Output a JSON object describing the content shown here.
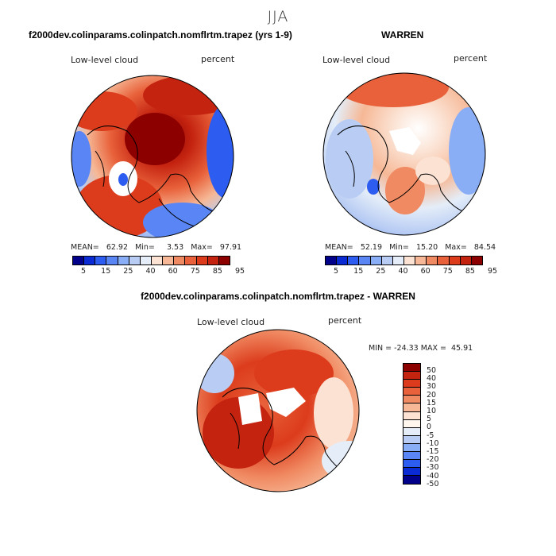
{
  "season": "JJA",
  "panel_left": {
    "title": "f2000dev.colinparams.colinpatch.nomflrtm.trapez (yrs 1-9)",
    "variable": "Low-level cloud",
    "units": "percent",
    "stats": "MEAN=   62.92   Min=     3.53   Max=   97.91"
  },
  "panel_right": {
    "title": "WARREN",
    "variable": "Low-level cloud",
    "units": "percent",
    "stats": "MEAN=   52.19   Min=   15.20   Max=   84.54"
  },
  "panel_diff": {
    "title": "f2000dev.colinparams.colinpatch.nomflrtm.trapez - WARREN",
    "variable": "Low-level cloud",
    "units": "percent",
    "stats": "MIN = -24.33 MAX =  45.91"
  },
  "abs_colorbar": {
    "colors": [
      "#00008b",
      "#0a2ad4",
      "#2d5cf0",
      "#5a86f5",
      "#8aaef5",
      "#b9cdf4",
      "#e4edf8",
      "#fbe2d3",
      "#f6b896",
      "#f08a62",
      "#e8613a",
      "#dc3c1c",
      "#c42310",
      "#8c0000"
    ],
    "tick_labels": [
      "5",
      "15",
      "25",
      "40",
      "60",
      "75",
      "85",
      "95"
    ]
  },
  "diff_colorbar": {
    "colors": [
      "#8c0000",
      "#c42310",
      "#dc3c1c",
      "#e8613a",
      "#f08a62",
      "#f6b896",
      "#fbe2d3",
      "#fff6ee",
      "#e4edf8",
      "#b9cdf4",
      "#8aaef5",
      "#5a86f5",
      "#2d5cf0",
      "#0a2ad4",
      "#00008b"
    ],
    "tick_labels": [
      "50",
      "40",
      "30",
      "20",
      "15",
      "10",
      "5",
      "0",
      "-5",
      "-10",
      "-15",
      "-20",
      "-30",
      "-40",
      "-50"
    ]
  }
}
